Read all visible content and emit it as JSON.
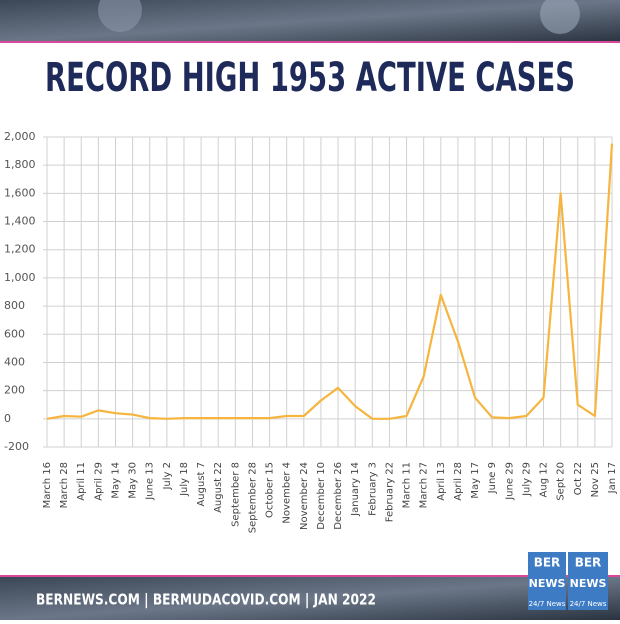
{
  "chart_data": {
    "type": "line",
    "title": "RECORD HIGH 1953 ACTIVE CASES",
    "categories": [
      "March 16",
      "March 28",
      "April 11",
      "April 29",
      "May 14",
      "May 30",
      "June 13",
      "July 2",
      "July 18",
      "August 7",
      "August 22",
      "September 8",
      "September 28",
      "October 15",
      "November 4",
      "November 24",
      "December 10",
      "December 26",
      "January 14",
      "February 3",
      "February 22",
      "March 11",
      "March 27",
      "April 13",
      "April 28",
      "May 17",
      "June 9",
      "June 29",
      "July 29",
      "Aug 12",
      "Sept 20",
      "Oct 22",
      "Nov 25",
      "Jan 17"
    ],
    "series": [
      {
        "name": "Active cases",
        "color": "#f5b53f",
        "values": [
          0,
          20,
          15,
          60,
          40,
          30,
          5,
          0,
          5,
          5,
          5,
          5,
          5,
          5,
          20,
          20,
          130,
          220,
          90,
          0,
          0,
          20,
          300,
          880,
          550,
          150,
          10,
          5,
          20,
          150,
          1600,
          100,
          20,
          1953
        ]
      }
    ],
    "ylim": [
      -200,
      2000
    ],
    "yticks": [
      -200,
      0,
      200,
      400,
      600,
      800,
      {
        "value": 1000,
        "label": "1,000"
      },
      {
        "value": 1200,
        "label": "1,200"
      },
      {
        "value": 1400,
        "label": "1,400"
      },
      {
        "value": 1600,
        "label": "1,600"
      },
      {
        "value": 1800,
        "label": "1,800"
      },
      {
        "value": 2000,
        "label": "2,000"
      }
    ],
    "grid": true
  },
  "footer": {
    "text": "BERNEWS.COM | BERMUDACOVID.COM | JAN 2022",
    "logo": {
      "top": "BER",
      "middle": "NEWS",
      "bottom": "24/7 News"
    }
  }
}
